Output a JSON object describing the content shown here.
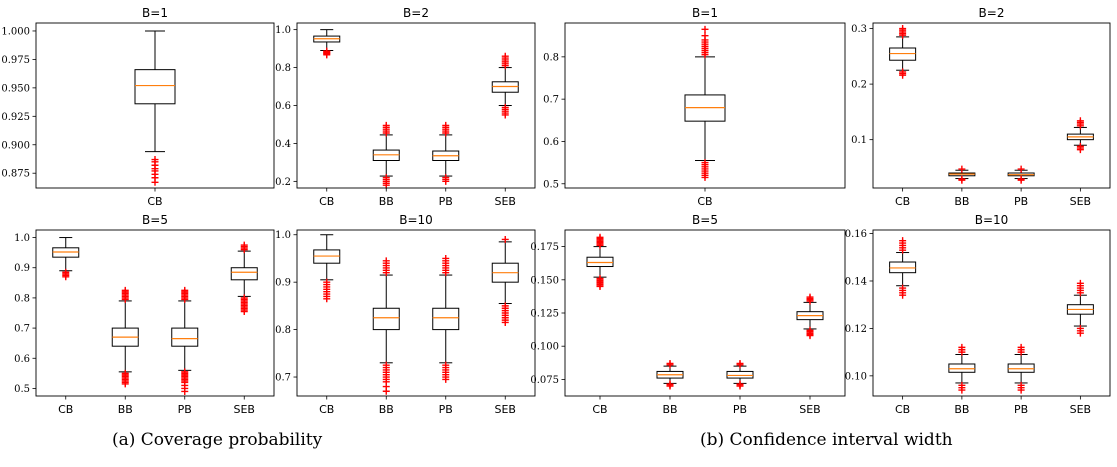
{
  "captions": {
    "a": "(a) Coverage probability",
    "b": "(b) Confidence interval width"
  },
  "style": {
    "median_color": "#ff7f0e",
    "flier_color": "#ff0000",
    "box_edge_color": "#000000"
  },
  "chart_data": [
    {
      "type": "boxplot",
      "group": "a",
      "title": "B=1",
      "categories": [
        "CB"
      ],
      "ylim": [
        0.862,
        1.007
      ],
      "yticks": [
        0.875,
        0.9,
        0.925,
        0.95,
        0.975,
        1.0
      ],
      "ytick_labels": [
        "0.875",
        "0.900",
        "0.925",
        "0.950",
        "0.975",
        "1.000"
      ],
      "boxes": [
        {
          "q1": 0.936,
          "median": 0.952,
          "q3": 0.966,
          "whislo": 0.894,
          "whishi": 1.0,
          "fliers": [
            0.887,
            0.885,
            0.882,
            0.879,
            0.877,
            0.874,
            0.871,
            0.867
          ]
        }
      ]
    },
    {
      "type": "boxplot",
      "group": "a",
      "title": "B=2",
      "categories": [
        "CB",
        "BB",
        "PB",
        "SEB"
      ],
      "ylim": [
        0.165,
        1.035
      ],
      "yticks": [
        0.2,
        0.4,
        0.6,
        0.8,
        1.0
      ],
      "ytick_labels": [
        "0.2",
        "0.4",
        "0.6",
        "0.8",
        "1.0"
      ],
      "boxes": [
        {
          "q1": 0.935,
          "median": 0.952,
          "q3": 0.966,
          "whislo": 0.89,
          "whishi": 1.0,
          "fliers": [
            0.887,
            0.883,
            0.879,
            0.875,
            0.871,
            0.867
          ]
        },
        {
          "q1": 0.31,
          "median": 0.34,
          "q3": 0.365,
          "whislo": 0.228,
          "whishi": 0.445,
          "fliers": [
            0.455,
            0.465,
            0.475,
            0.485,
            0.495,
            0.22,
            0.21,
            0.2,
            0.19,
            0.18
          ]
        },
        {
          "q1": 0.31,
          "median": 0.335,
          "q3": 0.36,
          "whislo": 0.228,
          "whishi": 0.445,
          "fliers": [
            0.455,
            0.465,
            0.475,
            0.485,
            0.495,
            0.22,
            0.21,
            0.2
          ]
        },
        {
          "q1": 0.67,
          "median": 0.7,
          "q3": 0.725,
          "whislo": 0.6,
          "whishi": 0.8,
          "fliers": [
            0.81,
            0.82,
            0.83,
            0.84,
            0.85,
            0.86,
            0.59,
            0.58,
            0.57,
            0.56,
            0.55
          ]
        }
      ]
    },
    {
      "type": "boxplot",
      "group": "a",
      "title": "B=5",
      "categories": [
        "CB",
        "BB",
        "PB",
        "SEB"
      ],
      "ylim": [
        0.475,
        1.025
      ],
      "yticks": [
        0.5,
        0.6,
        0.7,
        0.8,
        0.9,
        1.0
      ],
      "ytick_labels": [
        "0.5",
        "0.6",
        "0.7",
        "0.8",
        "0.9",
        "1.0"
      ],
      "boxes": [
        {
          "q1": 0.935,
          "median": 0.952,
          "q3": 0.966,
          "whislo": 0.89,
          "whishi": 1.0,
          "fliers": [
            0.885,
            0.88,
            0.875,
            0.87
          ]
        },
        {
          "q1": 0.64,
          "median": 0.67,
          "q3": 0.7,
          "whislo": 0.555,
          "whishi": 0.79,
          "fliers": [
            0.795,
            0.8,
            0.805,
            0.81,
            0.815,
            0.82,
            0.825,
            0.55,
            0.545,
            0.54,
            0.535,
            0.53,
            0.525,
            0.52,
            0.515
          ]
        },
        {
          "q1": 0.64,
          "median": 0.665,
          "q3": 0.7,
          "whislo": 0.56,
          "whishi": 0.79,
          "fliers": [
            0.795,
            0.8,
            0.805,
            0.81,
            0.815,
            0.82,
            0.825,
            0.555,
            0.55,
            0.545,
            0.54,
            0.535,
            0.53,
            0.525,
            0.52,
            0.51,
            0.5,
            0.49
          ]
        },
        {
          "q1": 0.86,
          "median": 0.885,
          "q3": 0.9,
          "whislo": 0.805,
          "whishi": 0.955,
          "fliers": [
            0.96,
            0.965,
            0.97,
            0.975,
            0.8,
            0.795,
            0.79,
            0.785,
            0.78,
            0.775,
            0.77,
            0.765,
            0.76,
            0.755
          ]
        }
      ]
    },
    {
      "type": "boxplot",
      "group": "a",
      "title": "B=10",
      "categories": [
        "CB",
        "BB",
        "PB",
        "SEB"
      ],
      "ylim": [
        0.66,
        1.01
      ],
      "yticks": [
        0.7,
        0.8,
        0.9,
        1.0
      ],
      "ytick_labels": [
        "0.7",
        "0.8",
        "0.9",
        "1.0"
      ],
      "boxes": [
        {
          "q1": 0.94,
          "median": 0.955,
          "q3": 0.968,
          "whislo": 0.905,
          "whishi": 1.0,
          "fliers": [
            0.9,
            0.895,
            0.89,
            0.885,
            0.88,
            0.875,
            0.87,
            0.865
          ]
        },
        {
          "q1": 0.8,
          "median": 0.825,
          "q3": 0.845,
          "whislo": 0.73,
          "whishi": 0.915,
          "fliers": [
            0.92,
            0.925,
            0.93,
            0.935,
            0.94,
            0.945,
            0.725,
            0.72,
            0.715,
            0.71,
            0.705,
            0.7,
            0.695,
            0.69,
            0.68,
            0.67
          ]
        },
        {
          "q1": 0.8,
          "median": 0.825,
          "q3": 0.845,
          "whislo": 0.73,
          "whishi": 0.915,
          "fliers": [
            0.92,
            0.925,
            0.93,
            0.935,
            0.94,
            0.945,
            0.95,
            0.725,
            0.72,
            0.715,
            0.71,
            0.705,
            0.7,
            0.695
          ]
        },
        {
          "q1": 0.9,
          "median": 0.92,
          "q3": 0.94,
          "whislo": 0.855,
          "whishi": 0.985,
          "fliers": [
            0.99,
            0.85,
            0.845,
            0.84,
            0.835,
            0.83,
            0.825,
            0.82,
            0.815
          ]
        }
      ]
    },
    {
      "type": "boxplot",
      "group": "b",
      "title": "B=1",
      "categories": [
        "CB"
      ],
      "ylim": [
        0.49,
        0.88
      ],
      "yticks": [
        0.5,
        0.6,
        0.7,
        0.8
      ],
      "ytick_labels": [
        "0.5",
        "0.6",
        "0.7",
        "0.8"
      ],
      "boxes": [
        {
          "q1": 0.648,
          "median": 0.68,
          "q3": 0.71,
          "whislo": 0.555,
          "whishi": 0.8,
          "fliers": [
            0.805,
            0.81,
            0.815,
            0.82,
            0.825,
            0.83,
            0.835,
            0.84,
            0.85,
            0.865,
            0.55,
            0.545,
            0.54,
            0.535,
            0.53,
            0.525,
            0.52,
            0.515
          ]
        }
      ]
    },
    {
      "type": "boxplot",
      "group": "b",
      "title": "B=2",
      "categories": [
        "CB",
        "BB",
        "PB",
        "SEB"
      ],
      "ylim": [
        0.013,
        0.31
      ],
      "yticks": [
        0.1,
        0.2,
        0.3
      ],
      "ytick_labels": [
        "0.1",
        "0.2",
        "0.3"
      ],
      "boxes": [
        {
          "q1": 0.243,
          "median": 0.255,
          "q3": 0.265,
          "whislo": 0.225,
          "whishi": 0.285,
          "fliers": [
            0.288,
            0.291,
            0.294,
            0.297,
            0.3,
            0.222,
            0.219,
            0.216
          ]
        },
        {
          "q1": 0.035,
          "median": 0.038,
          "q3": 0.04,
          "whislo": 0.03,
          "whishi": 0.045,
          "fliers": [
            0.047,
            0.029,
            0.027
          ]
        },
        {
          "q1": 0.035,
          "median": 0.037,
          "q3": 0.04,
          "whislo": 0.03,
          "whishi": 0.045,
          "fliers": [
            0.047,
            0.029,
            0.027
          ]
        },
        {
          "q1": 0.1,
          "median": 0.105,
          "q3": 0.11,
          "whislo": 0.09,
          "whishi": 0.122,
          "fliers": [
            0.125,
            0.128,
            0.131,
            0.134,
            0.088,
            0.085,
            0.082
          ]
        }
      ]
    },
    {
      "type": "boxplot",
      "group": "b",
      "title": "B=5",
      "categories": [
        "CB",
        "BB",
        "PB",
        "SEB"
      ],
      "ylim": [
        0.0625,
        0.1875
      ],
      "yticks": [
        0.075,
        0.1,
        0.125,
        0.15,
        0.175
      ],
      "ytick_labels": [
        "0.075",
        "0.100",
        "0.125",
        "0.150",
        "0.175"
      ],
      "boxes": [
        {
          "q1": 0.16,
          "median": 0.163,
          "q3": 0.167,
          "whislo": 0.152,
          "whishi": 0.175,
          "fliers": [
            0.176,
            0.177,
            0.178,
            0.179,
            0.18,
            0.181,
            0.182,
            0.151,
            0.15,
            0.149,
            0.148,
            0.147,
            0.146,
            0.145
          ]
        },
        {
          "q1": 0.076,
          "median": 0.0785,
          "q3": 0.081,
          "whislo": 0.072,
          "whishi": 0.085,
          "fliers": [
            0.086,
            0.087,
            0.0715,
            0.071,
            0.07
          ]
        },
        {
          "q1": 0.076,
          "median": 0.078,
          "q3": 0.081,
          "whislo": 0.072,
          "whishi": 0.085,
          "fliers": [
            0.086,
            0.087,
            0.0715,
            0.071,
            0.07
          ]
        },
        {
          "q1": 0.12,
          "median": 0.123,
          "q3": 0.126,
          "whislo": 0.113,
          "whishi": 0.133,
          "fliers": [
            0.134,
            0.135,
            0.136,
            0.137,
            0.112,
            0.111,
            0.11,
            0.109,
            0.108
          ]
        }
      ]
    },
    {
      "type": "boxplot",
      "group": "b",
      "title": "B=10",
      "categories": [
        "CB",
        "BB",
        "PB",
        "SEB"
      ],
      "ylim": [
        0.0915,
        0.1615
      ],
      "yticks": [
        0.1,
        0.12,
        0.14,
        0.16
      ],
      "ytick_labels": [
        "0.10",
        "0.12",
        "0.14",
        "0.16"
      ],
      "boxes": [
        {
          "q1": 0.1435,
          "median": 0.1455,
          "q3": 0.148,
          "whislo": 0.138,
          "whishi": 0.152,
          "fliers": [
            0.153,
            0.154,
            0.155,
            0.156,
            0.157,
            0.137,
            0.136,
            0.135,
            0.134
          ]
        },
        {
          "q1": 0.1015,
          "median": 0.103,
          "q3": 0.105,
          "whislo": 0.097,
          "whishi": 0.109,
          "fliers": [
            0.11,
            0.111,
            0.112,
            0.096,
            0.095,
            0.094
          ]
        },
        {
          "q1": 0.1015,
          "median": 0.103,
          "q3": 0.105,
          "whislo": 0.097,
          "whishi": 0.109,
          "fliers": [
            0.11,
            0.111,
            0.112,
            0.096,
            0.095,
            0.094
          ]
        },
        {
          "q1": 0.126,
          "median": 0.128,
          "q3": 0.13,
          "whislo": 0.121,
          "whishi": 0.134,
          "fliers": [
            0.135,
            0.136,
            0.137,
            0.138,
            0.139,
            0.12,
            0.119,
            0.118
          ]
        }
      ]
    }
  ]
}
